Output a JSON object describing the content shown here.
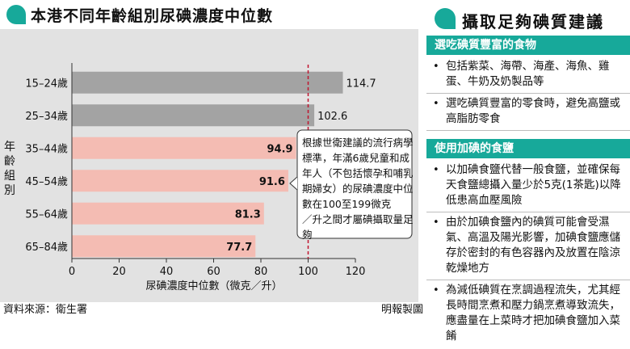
{
  "chart": {
    "title": "本港不同年齡組別尿碘濃度中位數",
    "source": "資料來源：衛生署",
    "credit": "明報製圖",
    "annotation": "根據世衛建議的流行病學標準，年滿6歲兒童和成年人（不包括懷孕和哺乳期婦女）的尿碘濃度中位數在100至199微克／升之間才屬碘攝取量足夠",
    "colors": {
      "over": "#a3a3a3",
      "under": "#f4bcb3",
      "refline": "#c0152f"
    }
  },
  "chart_data": {
    "type": "bar",
    "orientation": "horizontal",
    "categories": [
      "15–24歲",
      "25–34歲",
      "35–44歲",
      "45–54歲",
      "55–64歲",
      "65–84歲"
    ],
    "values": [
      114.7,
      102.6,
      94.9,
      91.6,
      81.3,
      77.7
    ],
    "value_labels": [
      "114.7",
      "102.6",
      "94.9",
      "91.6",
      "81.3",
      "77.7"
    ],
    "ylabel": "年齡組別",
    "xlabel": "尿碘濃度中位數（微克／升）",
    "xlim": [
      0,
      120
    ],
    "xticks": [
      0,
      20,
      40,
      60,
      80,
      100,
      120
    ],
    "reference_line": 100,
    "grid": false,
    "legend": "none"
  },
  "advice": {
    "title": "攝取足夠碘質建議",
    "sections": [
      {
        "heading": "選吃碘質豐富的食物",
        "items": [
          "包括紫菜、海帶、海產、海魚、雞蛋、牛奶及奶製品等",
          "選吃碘質豐富的零食時，避免高鹽或高脂肪零食"
        ]
      },
      {
        "heading": "使用加碘的食鹽",
        "items": [
          "以加碘食鹽代替一般食鹽，並確保每天食鹽總攝入量少於5克(1茶匙)以降低患高血壓風險",
          "由於加碘食鹽內的碘質可能會受濕氣、高溫及陽光影響，加碘食鹽應儲存於密封的有色容器內及放置在陰涼乾燥地方",
          "為減低碘質在烹調過程流失，尤其經長時間烹煮和壓力鍋烹煮導致流失，應盡量在上菜時才把加碘食鹽加入菜餚"
        ]
      }
    ],
    "bullet": "•"
  }
}
